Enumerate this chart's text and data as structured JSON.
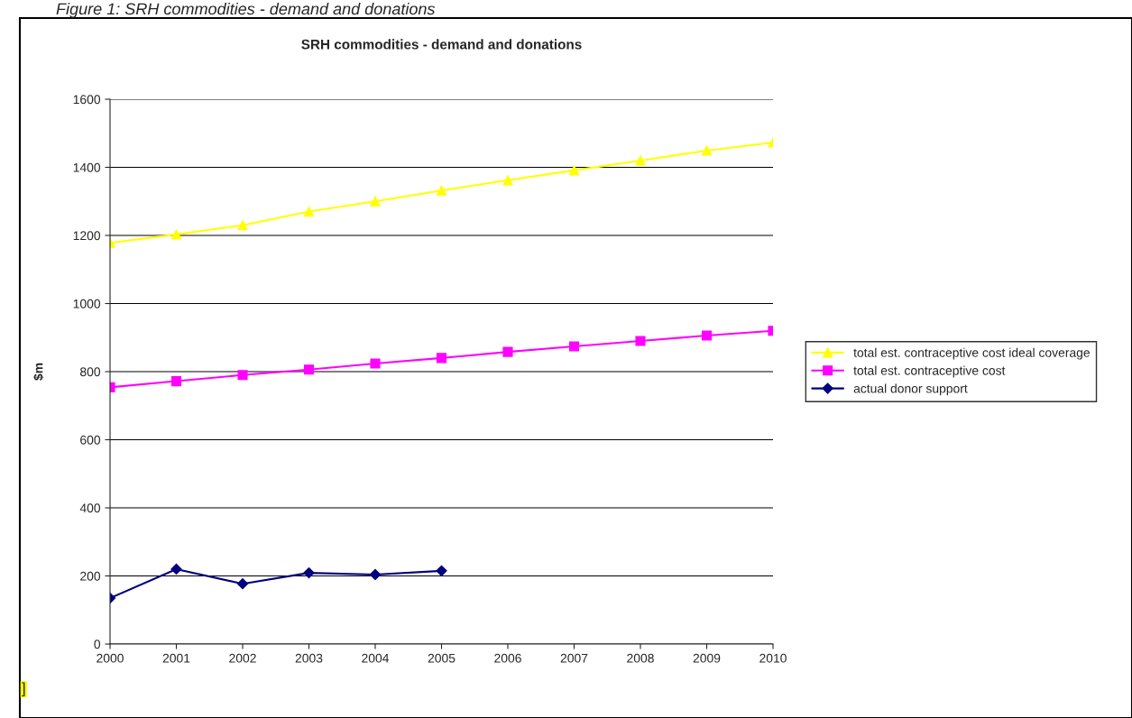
{
  "chart_data": {
    "type": "line",
    "title": "SRH commodities - demand and donations",
    "ylabel": "$m",
    "annotations": [
      "Figure 1: SRH commodities - demand and donations",
      "]"
    ],
    "categories": [
      "2000",
      "2001",
      "2002",
      "2003",
      "2004",
      "2005",
      "2006",
      "2007",
      "2008",
      "2009",
      "2010"
    ],
    "series": [
      {
        "name": "total est. contraceptive cost ideal coverage",
        "color": "#ffff00",
        "marker": "triangle",
        "values": [
          1178,
          1203,
          1230,
          1270,
          1300,
          1332,
          1362,
          1391,
          1420,
          1449,
          1473
        ]
      },
      {
        "name": "total est. contraceptive cost",
        "color": "#ff00ff",
        "marker": "square",
        "values": [
          754,
          772,
          790,
          806,
          824,
          840,
          858,
          874,
          890,
          906,
          920
        ]
      },
      {
        "name": "actual donor support",
        "color": "#000080",
        "marker": "diamond",
        "values": [
          135,
          220,
          177,
          209,
          204,
          215,
          null,
          null,
          null,
          null,
          null
        ]
      }
    ],
    "ylim": [
      0,
      1600
    ],
    "yticks": [
      0,
      200,
      400,
      600,
      800,
      1000,
      1200,
      1400,
      1600
    ],
    "grid": "y",
    "legend": "right"
  }
}
